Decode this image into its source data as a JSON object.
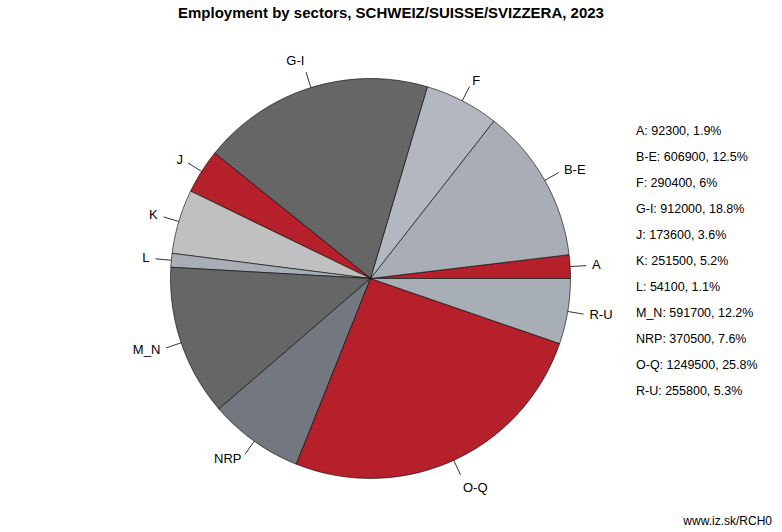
{
  "chart_data": {
    "type": "pie",
    "title": "Employment by sectors, SCHWEIZ/SUISSE/SVIZZERA, 2023",
    "categories": [
      "A",
      "B-E",
      "F",
      "G-I",
      "J",
      "K",
      "L",
      "M_N",
      "NRP",
      "O-Q",
      "R-U"
    ],
    "values": [
      92300,
      606900,
      290400,
      912000,
      173600,
      251500,
      54100,
      591700,
      370500,
      1249500,
      255800
    ],
    "value_labels": [
      "A: 92300, 1.9%",
      "B-E: 606900, 12.5%",
      "F: 290400, 6%",
      "G-I: 912000, 18.8%",
      "J: 173600, 3.6%",
      "K: 251500, 5.2%",
      "L: 54100, 1.1%",
      "M_N: 591700, 12.2%",
      "NRP: 370500, 7.6%",
      "O-Q: 1249500, 25.8%",
      "R-U: 255800, 5.3%"
    ],
    "colors": [
      "#b5202a",
      "#a9adb5",
      "#b3b8c0",
      "#666666",
      "#b5202a",
      "#c0c0c0",
      "#a8aeb6",
      "#666666",
      "#737880",
      "#b5202a",
      "#a8aeb6"
    ],
    "legend": "right",
    "caption": "www.iz.sk/RCH0"
  }
}
